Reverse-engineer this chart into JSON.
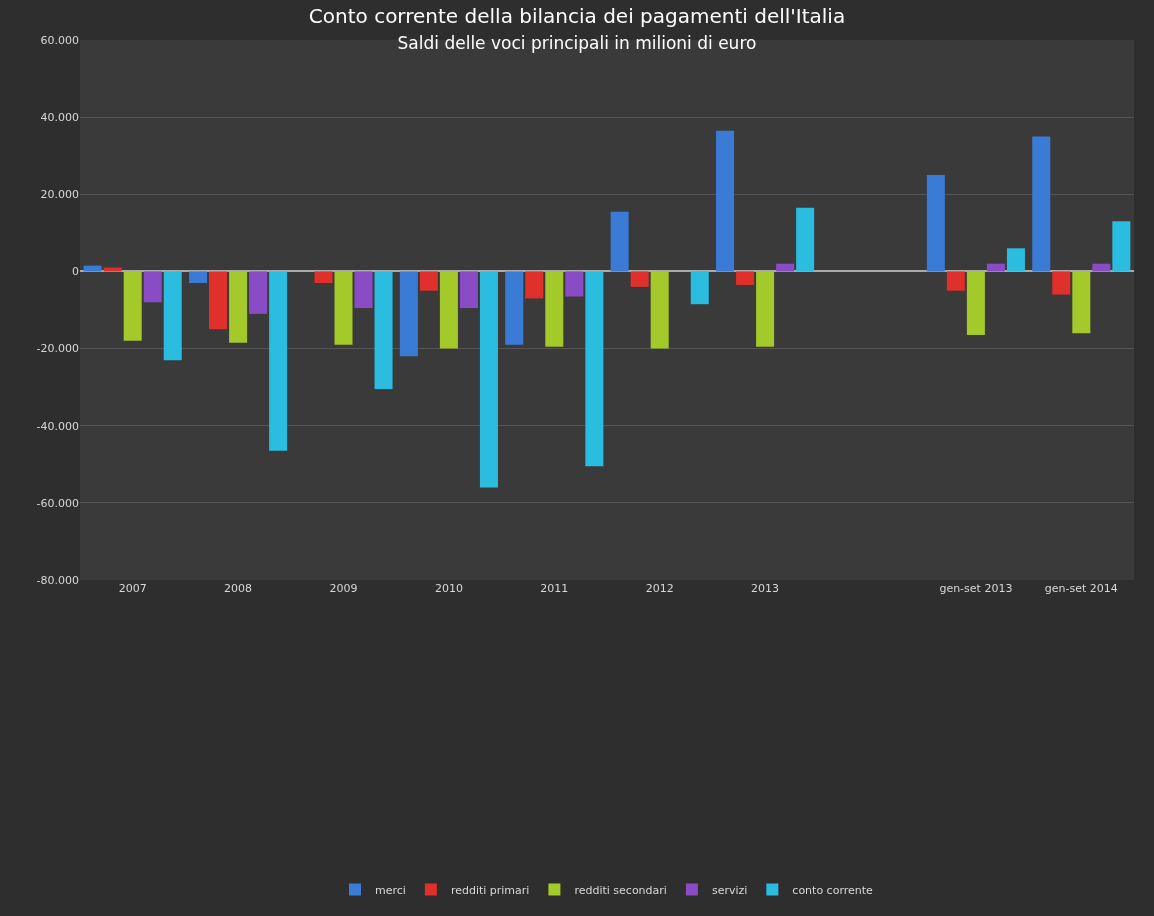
{
  "chart_data": {
    "type": "bar",
    "title": "Conto corrente della bilancia dei pagamenti dell'Italia",
    "subtitle": "Saldi delle voci principali in milioni di euro",
    "categories": [
      "2007",
      "2008",
      "2009",
      "2010",
      "2011",
      "2012",
      "2013",
      null,
      "gen-set 2013",
      "gen-set 2014"
    ],
    "series": [
      {
        "name": "merci",
        "color": "#3a7bd5",
        "values": [
          1500,
          -3000,
          0,
          -22000,
          -19000,
          15500,
          36500,
          null,
          25000,
          35000
        ]
      },
      {
        "name": "redditi primari",
        "color": "#e0302c",
        "values": [
          1000,
          -15000,
          -3000,
          -5000,
          -7000,
          -4000,
          -3500,
          null,
          -5000,
          -6000
        ]
      },
      {
        "name": "redditi secondari",
        "color": "#a4c92a",
        "values": [
          -18000,
          -18500,
          -19000,
          -20000,
          -19500,
          -20000,
          -19500,
          null,
          -16500,
          -16000
        ]
      },
      {
        "name": "servizi",
        "color": "#8a4cc4",
        "values": [
          -8000,
          -11000,
          -9500,
          -9500,
          -6500,
          0,
          2000,
          null,
          2000,
          2000
        ]
      },
      {
        "name": "conto corrente",
        "color": "#2bbde0",
        "values": [
          -23000,
          -46500,
          -30500,
          -56000,
          -50500,
          -8500,
          16500,
          null,
          6000,
          13000
        ]
      }
    ],
    "ylim": [
      -80000,
      60000
    ],
    "yticks": [
      {
        "value": -80000,
        "label": "-80.000"
      },
      {
        "value": -60000,
        "label": "-60.000"
      },
      {
        "value": -40000,
        "label": "-40.000"
      },
      {
        "value": -20000,
        "label": "-20.000"
      },
      {
        "value": 0,
        "label": "0"
      },
      {
        "value": 20000,
        "label": "20.000"
      },
      {
        "value": 40000,
        "label": "40.000"
      },
      {
        "value": 60000,
        "label": "60.000"
      }
    ],
    "grid": "y",
    "legend": "bottom"
  }
}
